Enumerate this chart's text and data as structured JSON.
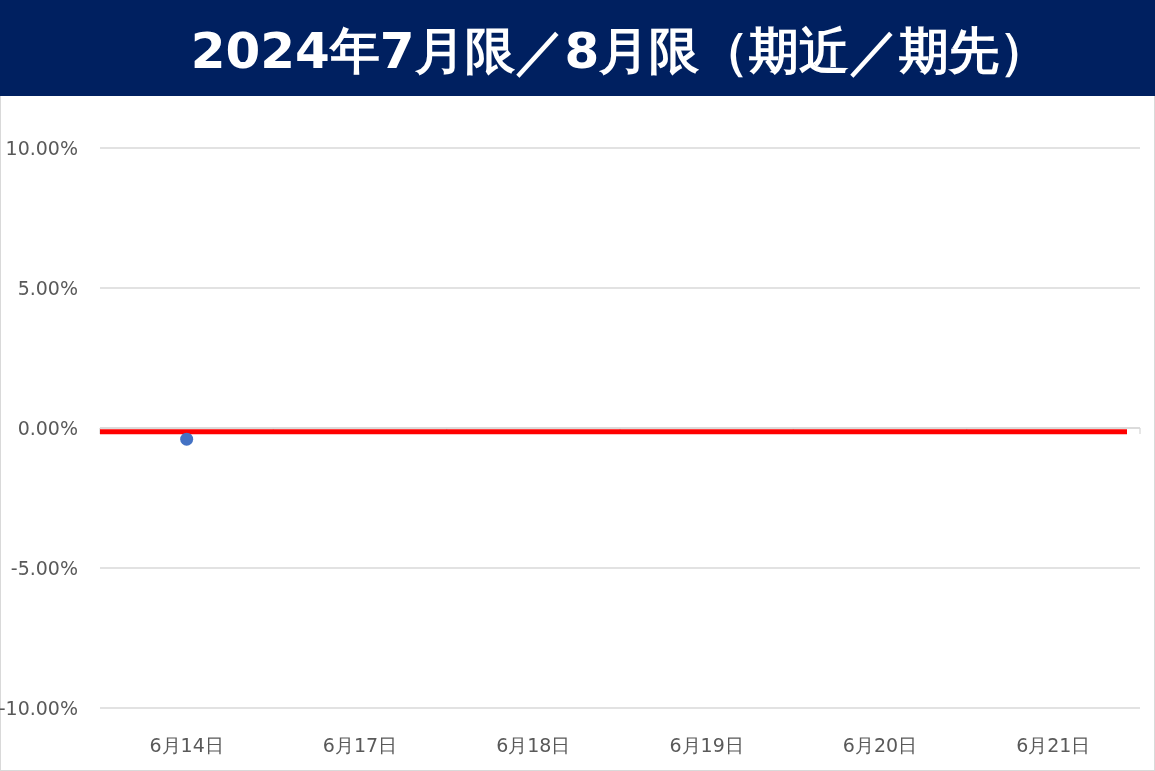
{
  "chart_data": {
    "type": "line",
    "title": "2024年7月限／8月限（期近／期先）",
    "categories": [
      "6月14日",
      "6月17日",
      "6月18日",
      "6月19日",
      "6月20日",
      "6月21日"
    ],
    "series": [
      {
        "color": "#4472c4",
        "values": [
          -0.4,
          null,
          null,
          null,
          null,
          null
        ]
      }
    ],
    "marker": "circle",
    "ylim": [
      -10,
      10
    ],
    "yticks": [
      {
        "value": -10,
        "label": "-10.00%"
      },
      {
        "value": -5,
        "label": "-5.00%"
      },
      {
        "value": 0,
        "label": "0.00%"
      },
      {
        "value": 5,
        "label": "5.00%"
      },
      {
        "value": 10,
        "label": "10.00%"
      }
    ],
    "grid": "y",
    "ref_lines": [
      {
        "axis": "y",
        "value": -0.13,
        "color": "#ff0000"
      }
    ]
  }
}
